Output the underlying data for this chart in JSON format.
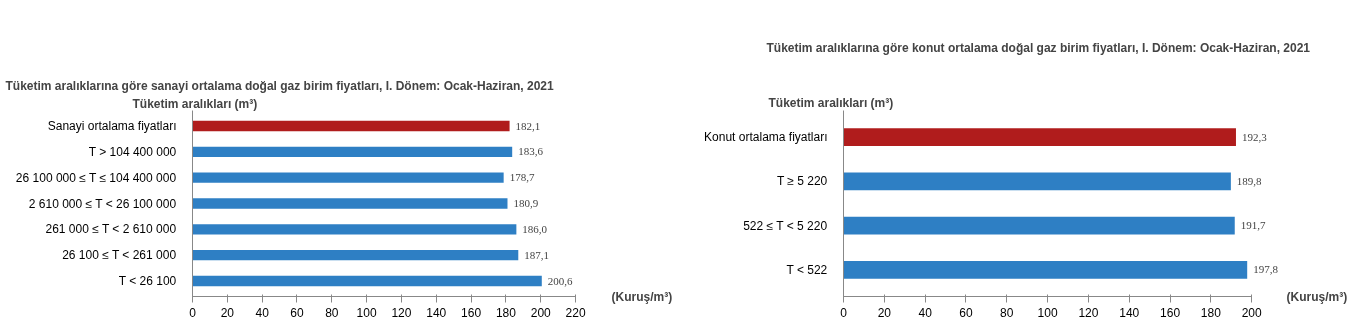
{
  "chart_data": [
    {
      "type": "bar",
      "orientation": "horizontal",
      "title": "Tüketim aralıklarına göre sanayi ortalama doğal gaz birim fiyatları,  I. Dönem: Ocak-Haziran, 2021",
      "ylabel": "Tüketim aralıkları (m³)",
      "xlabel": "(Kuruş/m³)",
      "categories": [
        "Sanayi ortalama fiyatları",
        "T > 104 400 000",
        "26 100 000 ≤ T ≤ 104 400 000",
        "2 610 000 ≤ T < 26 100 000",
        "261 000 ≤ T < 2 610 000",
        "26 100 ≤ T < 261 000",
        "T < 26 100"
      ],
      "values": [
        182.1,
        183.6,
        178.7,
        180.9,
        186.0,
        187.1,
        200.6
      ],
      "value_labels": [
        "182,1",
        "183,6",
        "178,7",
        "180,9",
        "186,0",
        "187,1",
        "200,6"
      ],
      "colors": [
        "#b01c1c",
        "#2e7fc4",
        "#2e7fc4",
        "#2e7fc4",
        "#2e7fc4",
        "#2e7fc4",
        "#2e7fc4"
      ],
      "xlim": [
        0,
        220
      ],
      "xticks": [
        0,
        20,
        40,
        60,
        80,
        100,
        120,
        140,
        160,
        180,
        200,
        220
      ],
      "grid": false,
      "legend": false
    },
    {
      "type": "bar",
      "orientation": "horizontal",
      "title": "Tüketim aralıklarına göre konut ortalama doğal gaz birim fiyatları,  I. Dönem: Ocak-Haziran, 2021",
      "ylabel": "Tüketim aralıkları (m³)",
      "xlabel": "(Kuruş/m³)",
      "categories": [
        "Konut ortalama fiyatları",
        "T ≥ 5 220",
        "522 ≤ T < 5 220",
        "T < 522"
      ],
      "values": [
        192.3,
        189.8,
        191.7,
        197.8
      ],
      "value_labels": [
        "192,3",
        "189,8",
        "191,7",
        "197,8"
      ],
      "colors": [
        "#b01c1c",
        "#2e7fc4",
        "#2e7fc4",
        "#2e7fc4"
      ],
      "xlim": [
        0,
        200
      ],
      "xticks": [
        0,
        20,
        40,
        60,
        80,
        100,
        120,
        140,
        160,
        180,
        200
      ],
      "grid": false,
      "legend": false
    }
  ]
}
